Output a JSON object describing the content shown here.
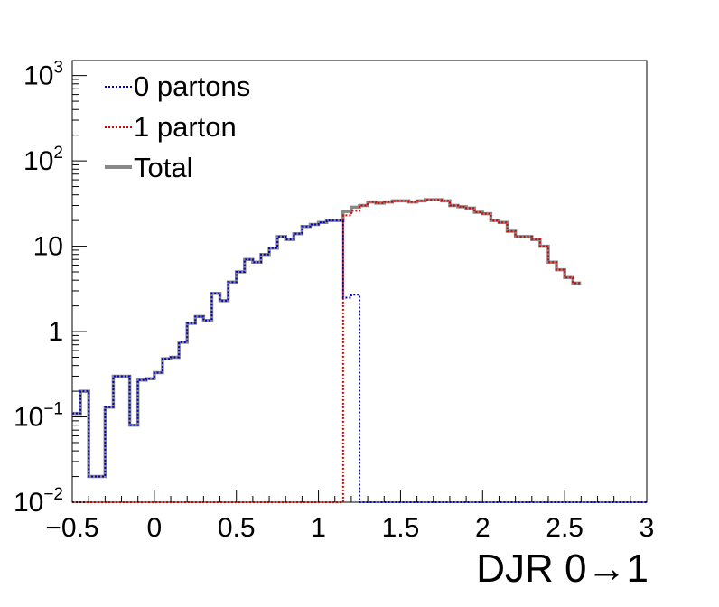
{
  "chart_data": {
    "type": "step-histogram",
    "xlabel": "DJR 0→1",
    "xlim": [
      -0.5,
      3.0
    ],
    "ylim": [
      0.01,
      1500
    ],
    "yscale": "log",
    "bin_width": 0.05,
    "x_tick_labels": [
      "−0.5",
      "0",
      "0.5",
      "1",
      "1.5",
      "2",
      "2.5",
      "3"
    ],
    "x_tick_values": [
      -0.5,
      0,
      0.5,
      1,
      1.5,
      2,
      2.5,
      3
    ],
    "y_ticks": [
      {
        "value": 0.01,
        "base": "10",
        "exp": "−2"
      },
      {
        "value": 0.1,
        "base": "10",
        "exp": "−1"
      },
      {
        "value": 1,
        "base": "1",
        "exp": ""
      },
      {
        "value": 10,
        "base": "10",
        "exp": ""
      },
      {
        "value": 100,
        "base": "10",
        "exp": "2"
      },
      {
        "value": 1000,
        "base": "10",
        "exp": "3"
      }
    ],
    "legend": {
      "placement": "top-left",
      "entries": [
        {
          "label": "0 partons",
          "color": "#0000cc",
          "style": "dotted"
        },
        {
          "label": "1 parton",
          "color": "#dd0000",
          "style": "dotted"
        },
        {
          "label": "Total",
          "color": "#888888",
          "style": "solid"
        }
      ]
    },
    "series": [
      {
        "name": "0 partons",
        "color": "#0000cc",
        "x_start": -0.5,
        "values": [
          0.11,
          0.2,
          0.02,
          0.02,
          0.13,
          0.3,
          0.3,
          0.08,
          0.27,
          0.28,
          0.33,
          0.48,
          0.5,
          0.75,
          1.25,
          1.5,
          1.35,
          2.8,
          2.3,
          3.8,
          5.0,
          7.0,
          6.5,
          8.0,
          9.5,
          13.0,
          12.0,
          14.0,
          17.0,
          18.0,
          19.0,
          20.0,
          20.0,
          2.5,
          2.7,
          0.01,
          0.01,
          0.01,
          0.01,
          0.01,
          0.01,
          0.01,
          0.01,
          0.01,
          0.01,
          0.01,
          0.01,
          0.01,
          0.01,
          0.01,
          0.01,
          0.01,
          0.01,
          0.01,
          0.01,
          0.01,
          0.01,
          0.01,
          0.01,
          0.01,
          0.01,
          0.01,
          0.01,
          0.01,
          0.01,
          0.01,
          0.01,
          0.01,
          0.01,
          0.01
        ]
      },
      {
        "name": "1 parton",
        "color": "#dd0000",
        "x_start": -0.5,
        "values": [
          0.01,
          0.01,
          0.01,
          0.01,
          0.01,
          0.01,
          0.01,
          0.01,
          0.01,
          0.01,
          0.01,
          0.01,
          0.01,
          0.01,
          0.01,
          0.01,
          0.01,
          0.01,
          0.01,
          0.01,
          0.01,
          0.01,
          0.01,
          0.01,
          0.01,
          0.01,
          0.01,
          0.01,
          0.01,
          0.01,
          0.01,
          0.01,
          0.01,
          23.0,
          26.0,
          30.0,
          33.0,
          32.0,
          33.0,
          34.0,
          34.0,
          33.0,
          34.0,
          35.0,
          35.0,
          34.0,
          30.0,
          29.0,
          28.0,
          25.0,
          24.0,
          20.0,
          19.0,
          15.0,
          13.0,
          13.0,
          12.0,
          10.0,
          6.5,
          5.3,
          4.3,
          3.7
        ]
      },
      {
        "name": "Total",
        "color": "#888888",
        "x_start": -0.5,
        "values": [
          0.11,
          0.2,
          0.02,
          0.02,
          0.13,
          0.3,
          0.3,
          0.08,
          0.27,
          0.28,
          0.33,
          0.48,
          0.5,
          0.75,
          1.25,
          1.5,
          1.35,
          2.8,
          2.3,
          3.8,
          5.0,
          7.0,
          6.5,
          8.0,
          9.5,
          13.0,
          12.0,
          14.0,
          17.0,
          18.0,
          19.0,
          20.0,
          20.0,
          25.5,
          28.7,
          30.0,
          33.0,
          32.0,
          33.0,
          34.0,
          34.0,
          33.0,
          34.0,
          35.0,
          35.0,
          34.0,
          30.0,
          29.0,
          28.0,
          25.0,
          24.0,
          20.0,
          19.0,
          15.0,
          13.0,
          13.0,
          12.0,
          10.0,
          6.5,
          5.3,
          4.3,
          3.7
        ]
      }
    ]
  }
}
